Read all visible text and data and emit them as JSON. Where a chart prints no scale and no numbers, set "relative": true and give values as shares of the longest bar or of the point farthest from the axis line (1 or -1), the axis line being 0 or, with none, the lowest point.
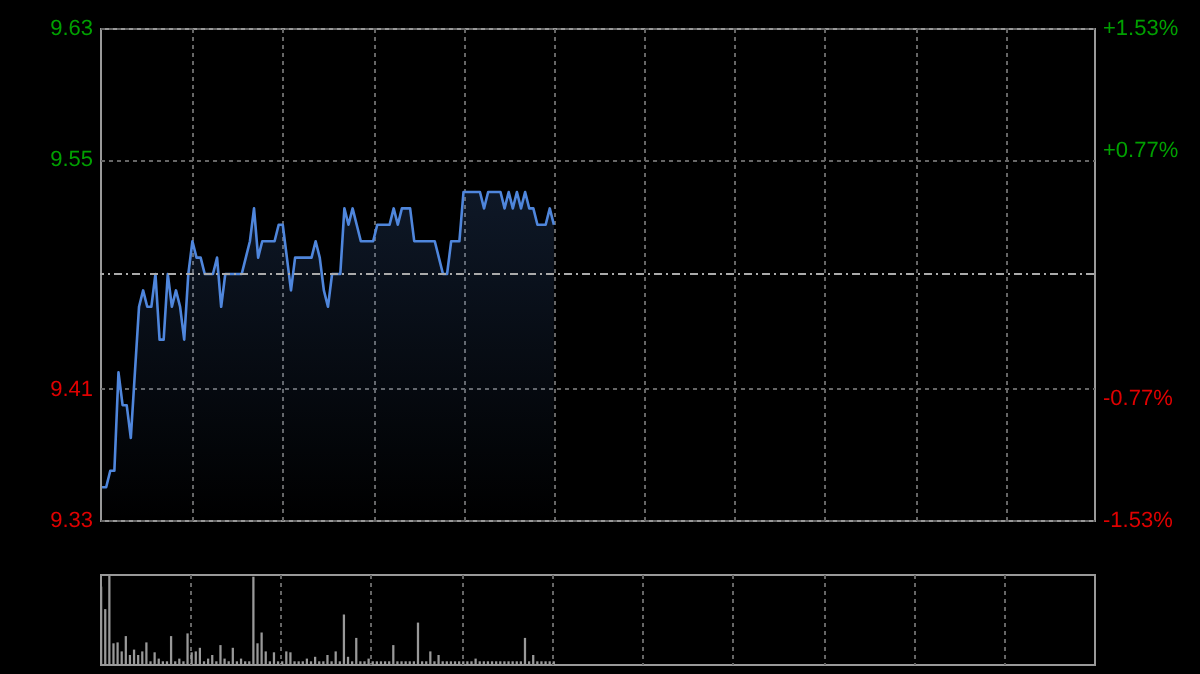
{
  "chart_data": [
    {
      "type": "area",
      "categories": [
        null,
        null,
        null,
        null,
        null,
        null,
        null,
        null,
        null,
        null,
        null,
        null,
        null,
        null,
        null,
        null,
        null,
        null,
        null,
        null,
        null,
        null,
        null,
        null,
        null,
        null,
        null,
        null,
        null,
        null,
        null,
        null,
        null,
        null,
        null,
        null,
        null,
        null,
        null,
        null,
        null,
        null,
        null,
        null,
        null,
        null,
        null,
        null,
        null,
        null,
        null,
        null,
        null,
        null,
        null,
        null,
        null,
        null,
        null,
        null,
        null,
        null,
        null,
        null,
        null,
        null,
        null,
        null,
        null,
        null,
        null,
        null,
        null,
        null,
        null,
        null,
        null,
        null,
        null,
        null,
        null,
        null,
        null,
        null,
        null,
        null,
        null,
        null,
        null,
        null,
        null,
        null,
        null,
        null,
        null,
        null,
        null,
        null,
        null,
        null,
        null,
        null,
        null,
        null,
        null,
        null,
        null,
        null,
        null,
        null,
        null,
        null,
        null,
        null,
        null,
        null,
        null,
        null,
        null,
        null,
        null,
        null,
        null,
        null,
        null,
        null,
        null,
        null,
        null,
        null,
        null,
        null,
        null,
        null,
        null,
        null,
        null,
        null,
        null,
        null,
        null,
        null,
        null,
        null,
        null,
        null,
        null,
        null,
        null,
        null,
        null,
        null,
        null,
        null,
        null,
        null,
        null,
        null,
        null,
        null,
        null,
        null,
        null,
        null,
        null,
        null,
        null,
        null,
        null,
        null,
        null,
        null,
        null,
        null,
        null,
        null,
        null,
        null,
        null,
        null,
        null,
        null,
        null,
        null,
        null,
        null,
        null,
        null,
        null,
        null,
        null,
        null,
        null,
        null,
        null,
        null,
        null,
        null,
        null,
        null,
        null,
        null,
        null,
        null,
        null,
        null,
        null,
        null,
        null,
        null,
        null,
        null,
        null,
        null,
        null,
        null,
        null,
        null,
        null,
        null,
        null,
        null,
        null,
        null,
        null,
        null,
        null,
        null,
        null,
        null,
        null,
        null,
        null,
        null,
        null,
        null,
        null,
        null,
        null,
        null,
        null,
        null
      ],
      "ylim": [
        9.33,
        9.63
      ],
      "yticks": [
        9.33,
        9.41,
        9.55,
        9.63
      ],
      "y2lim": [
        -1.53,
        1.53
      ],
      "y2ticks": [
        {
          "value": -1.53,
          "label": "-1.53%"
        },
        {
          "value": -0.77,
          "label": "-0.77%"
        },
        {
          "value": 0.77,
          "label": "+0.77%"
        },
        {
          "value": 1.53,
          "label": "+1.53%"
        }
      ],
      "tick_labels": "y",
      "grid": true,
      "ref_lines": [
        {
          "axis": "y",
          "value": 9.48,
          "label": null,
          "color": "#aaaaaa",
          "line_style": "dashed"
        }
      ],
      "series": [
        {
          "color": "#4f86dc",
          "values": [
            9.35,
            9.35,
            9.36,
            9.36,
            9.42,
            9.4,
            9.4,
            9.38,
            9.42,
            9.46,
            9.47,
            9.46,
            9.46,
            9.48,
            9.44,
            9.44,
            9.48,
            9.46,
            9.47,
            9.46,
            9.44,
            9.48,
            9.5,
            9.49,
            9.49,
            9.48,
            9.48,
            9.48,
            9.49,
            9.46,
            9.48,
            9.48,
            9.48,
            9.48,
            9.48,
            9.49,
            9.5,
            9.52,
            9.49,
            9.5,
            9.5,
            9.5,
            9.5,
            9.51,
            9.51,
            9.49,
            9.47,
            9.49,
            9.49,
            9.49,
            9.49,
            9.49,
            9.5,
            9.49,
            9.47,
            9.46,
            9.48,
            9.48,
            9.48,
            9.52,
            9.51,
            9.52,
            9.51,
            9.5,
            9.5,
            9.5,
            9.5,
            9.51,
            9.51,
            9.51,
            9.51,
            9.52,
            9.51,
            9.52,
            9.52,
            9.52,
            9.5,
            9.5,
            9.5,
            9.5,
            9.5,
            9.5,
            9.49,
            9.48,
            9.48,
            9.5,
            9.5,
            9.5,
            9.53,
            9.53,
            9.53,
            9.53,
            9.53,
            9.52,
            9.53,
            9.53,
            9.53,
            9.53,
            9.52,
            9.53,
            9.52,
            9.53,
            9.52,
            9.53,
            9.52,
            9.52,
            9.51,
            9.51,
            9.51,
            9.52,
            9.51,
            null,
            null,
            null,
            null,
            null,
            null,
            null,
            null,
            null,
            null,
            null,
            null,
            null,
            null,
            null,
            null,
            null,
            null,
            null,
            null,
            null,
            null,
            null,
            null,
            null,
            null,
            null,
            null,
            null,
            null,
            null,
            null,
            null,
            null,
            null,
            null,
            null,
            null,
            null,
            null,
            null,
            null,
            null,
            null,
            null,
            null,
            null,
            null,
            null,
            null,
            null,
            null,
            null,
            null,
            null,
            null,
            null,
            null,
            null,
            null,
            null,
            null,
            null,
            null,
            null,
            null,
            null,
            null,
            null,
            null,
            null,
            null,
            null,
            null,
            null,
            null,
            null,
            null,
            null,
            null,
            null,
            null,
            null,
            null,
            null,
            null,
            null,
            null,
            null,
            null,
            null,
            null,
            null,
            null,
            null,
            null,
            null,
            null,
            null,
            null,
            null,
            null,
            null,
            null,
            null,
            null,
            null,
            null,
            null,
            null,
            null,
            null,
            null,
            null,
            null,
            null,
            null,
            null,
            null,
            null,
            null,
            null,
            null,
            null,
            null,
            null,
            null,
            null,
            null,
            null,
            null
          ]
        }
      ]
    },
    {
      "type": "bar",
      "relative": true,
      "tick_labels": false,
      "grid": "x",
      "categories": [
        null,
        null,
        null,
        null,
        null,
        null,
        null,
        null,
        null,
        null,
        null,
        null,
        null,
        null,
        null,
        null,
        null,
        null,
        null,
        null,
        null,
        null,
        null,
        null,
        null,
        null,
        null,
        null,
        null,
        null,
        null,
        null,
        null,
        null,
        null,
        null,
        null,
        null,
        null,
        null,
        null,
        null,
        null,
        null,
        null,
        null,
        null,
        null,
        null,
        null,
        null,
        null,
        null,
        null,
        null,
        null,
        null,
        null,
        null,
        null,
        null,
        null,
        null,
        null,
        null,
        null,
        null,
        null,
        null,
        null,
        null,
        null,
        null,
        null,
        null,
        null,
        null,
        null,
        null,
        null,
        null,
        null,
        null,
        null,
        null,
        null,
        null,
        null,
        null,
        null,
        null,
        null,
        null,
        null,
        null,
        null,
        null,
        null,
        null,
        null,
        null,
        null,
        null,
        null,
        null,
        null,
        null,
        null,
        null,
        null,
        null,
        null,
        null,
        null,
        null,
        null,
        null,
        null,
        null,
        null,
        null,
        null,
        null,
        null,
        null,
        null,
        null,
        null,
        null,
        null,
        null,
        null,
        null,
        null,
        null,
        null,
        null,
        null,
        null,
        null,
        null,
        null,
        null,
        null,
        null,
        null,
        null,
        null,
        null,
        null,
        null,
        null,
        null,
        null,
        null,
        null,
        null,
        null,
        null,
        null,
        null,
        null,
        null,
        null,
        null,
        null,
        null,
        null,
        null,
        null,
        null,
        null,
        null,
        null,
        null,
        null,
        null,
        null,
        null,
        null,
        null,
        null,
        null,
        null,
        null,
        null,
        null,
        null,
        null,
        null,
        null,
        null,
        null,
        null,
        null,
        null,
        null,
        null,
        null,
        null,
        null,
        null,
        null,
        null,
        null,
        null,
        null,
        null,
        null,
        null,
        null,
        null,
        null,
        null,
        null,
        null,
        null,
        null,
        null,
        null,
        null,
        null,
        null,
        null,
        null,
        null,
        null,
        null,
        null,
        null,
        null,
        null,
        null,
        null,
        null,
        null,
        null,
        null,
        null,
        null,
        null,
        null
      ],
      "series": [
        {
          "color": "#999999",
          "values": [
            0.86,
            0.61,
            1.0,
            0.23,
            0.24,
            0.14,
            0.31,
            0.1,
            0.16,
            0.1,
            0.14,
            0.24,
            0.03,
            0.13,
            0.06,
            0.03,
            0.03,
            0.31,
            0.03,
            0.06,
            0.03,
            0.34,
            0.13,
            0.14,
            0.18,
            0.03,
            0.06,
            0.1,
            0.03,
            0.21,
            0.06,
            0.03,
            0.18,
            0.03,
            0.06,
            0.03,
            0.03,
            0.97,
            0.23,
            0.35,
            0.14,
            0.03,
            0.13,
            0.03,
            0.03,
            0.14,
            0.13,
            0.03,
            0.03,
            0.03,
            0.06,
            0.03,
            0.08,
            0.03,
            0.03,
            0.1,
            0.03,
            0.14,
            0.03,
            0.55,
            0.08,
            0.03,
            0.29,
            0.03,
            0.03,
            0.06,
            0.03,
            0.03,
            0.03,
            0.03,
            0.03,
            0.21,
            0.03,
            0.03,
            0.03,
            0.03,
            0.03,
            0.46,
            0.03,
            0.03,
            0.14,
            0.03,
            0.1,
            0.03,
            0.03,
            0.03,
            0.03,
            0.03,
            0.03,
            0.03,
            0.03,
            0.06,
            0.03,
            0.03,
            0.03,
            0.03,
            0.03,
            0.03,
            0.03,
            0.03,
            0.03,
            0.03,
            0.03,
            0.29,
            0.03,
            0.1,
            0.03,
            0.03,
            0.03,
            0.03,
            0.03,
            null,
            null,
            null,
            null,
            null,
            null,
            null,
            null,
            null,
            null,
            null,
            null,
            null,
            null,
            null,
            null,
            null,
            null,
            null,
            null,
            null,
            null,
            null,
            null,
            null,
            null,
            null,
            null,
            null,
            null,
            null,
            null,
            null,
            null,
            null,
            null,
            null,
            null,
            null,
            null,
            null,
            null,
            null,
            null,
            null,
            null,
            null,
            null,
            null,
            null,
            null,
            null,
            null,
            null,
            null,
            null,
            null,
            null,
            null,
            null,
            null,
            null,
            null,
            null,
            null,
            null,
            null,
            null,
            null,
            null,
            null,
            null,
            null,
            null,
            null,
            null,
            null,
            null,
            null,
            null,
            null,
            null,
            null,
            null,
            null,
            null,
            null,
            null,
            null,
            null,
            null,
            null,
            null,
            null,
            null,
            null,
            null,
            null,
            null,
            null,
            null,
            null,
            null,
            null,
            null,
            null,
            null,
            null,
            null,
            null,
            null,
            null,
            null,
            null,
            null,
            null,
            null,
            null,
            null,
            null,
            null,
            null,
            null,
            null,
            null,
            null,
            null,
            null,
            null,
            null,
            null
          ]
        }
      ]
    }
  ]
}
